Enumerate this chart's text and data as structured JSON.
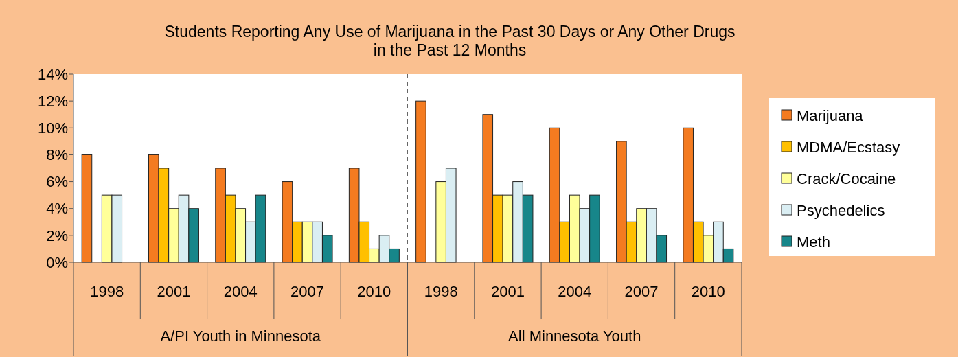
{
  "chart_data": {
    "type": "bar",
    "title": "Students Reporting Any Use of Marijuana in the Past 30 Days or Any Other Drugs\nin the Past 12 Months",
    "categories": [
      "1998",
      "2001",
      "2004",
      "2007",
      "2010",
      "1998",
      "2001",
      "2004",
      "2007",
      "2010"
    ],
    "series": [
      {
        "name": "Marijuana",
        "color": "#f47b20",
        "values": [
          8,
          8,
          7,
          6,
          7,
          12,
          11,
          10,
          9,
          10
        ]
      },
      {
        "name": "MDMA/Ecstasy",
        "color": "#ffc000",
        "values": [
          null,
          7,
          5,
          3,
          3,
          null,
          5,
          3,
          3,
          3
        ]
      },
      {
        "name": "Crack/Cocaine",
        "color": "#ffff99",
        "values": [
          5,
          4,
          4,
          3,
          1,
          6,
          5,
          5,
          4,
          2
        ]
      },
      {
        "name": "Psychedelics",
        "color": "#daeef3",
        "values": [
          5,
          5,
          3,
          3,
          2,
          7,
          6,
          4,
          4,
          3
        ]
      },
      {
        "name": "Meth",
        "color": "#17868a",
        "values": [
          null,
          4,
          5,
          2,
          1,
          null,
          5,
          5,
          2,
          1
        ]
      }
    ],
    "annotations": [
      "A/PI Youth in Minnesota",
      "All Minnesota Youth"
    ],
    "ylim": [
      0,
      14
    ],
    "yticks": [
      {
        "value": 0,
        "label": "0%"
      },
      {
        "value": 2,
        "label": "2%"
      },
      {
        "value": 4,
        "label": "4%"
      },
      {
        "value": 6,
        "label": "6%"
      },
      {
        "value": 8,
        "label": "8%"
      },
      {
        "value": 10,
        "label": "10%"
      },
      {
        "value": 12,
        "label": "12%"
      },
      {
        "value": 14,
        "label": "14%"
      }
    ],
    "grid": false,
    "legend": "right"
  }
}
